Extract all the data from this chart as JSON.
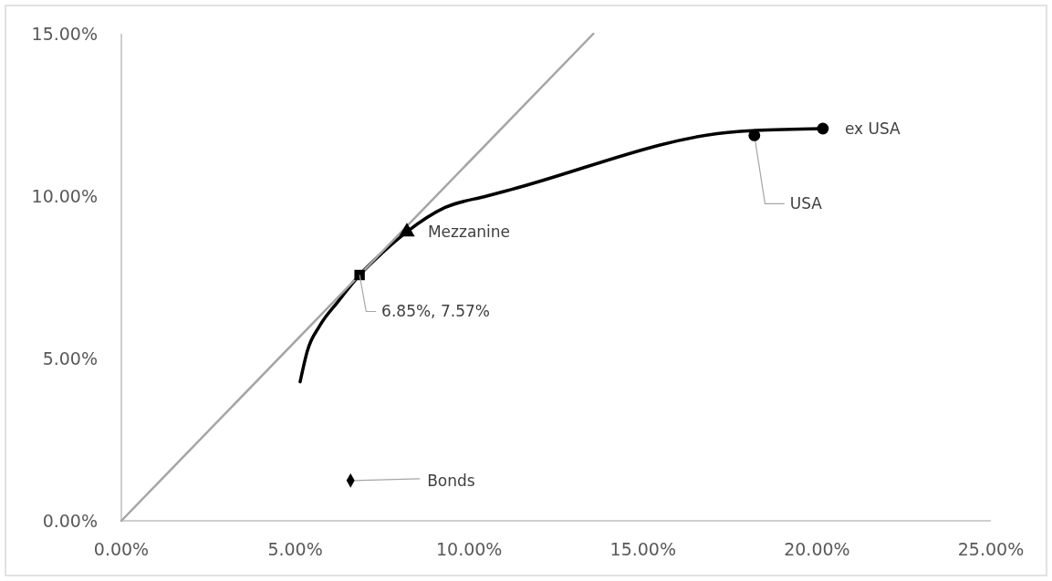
{
  "chart_data": {
    "type": "scatter",
    "xlim": [
      0,
      25
    ],
    "ylim": [
      0,
      15
    ],
    "xticks": [
      {
        "value": 0,
        "label": "0.00%"
      },
      {
        "value": 5,
        "label": "5.00%"
      },
      {
        "value": 10,
        "label": "10.00%"
      },
      {
        "value": 15,
        "label": "15.00%"
      },
      {
        "value": 20,
        "label": "20.00%"
      },
      {
        "value": 25,
        "label": "25.00%"
      }
    ],
    "yticks": [
      {
        "value": 0,
        "label": "0.00%"
      },
      {
        "value": 5,
        "label": "5.00%"
      },
      {
        "value": 10,
        "label": "10.00%"
      },
      {
        "value": 15,
        "label": "15.00%"
      }
    ],
    "grid": false,
    "series": [
      {
        "type": "line",
        "color": "#000000",
        "marker": "none",
        "x": [
          5.14,
          5.35,
          5.7,
          6.22,
          6.85,
          7.5,
          8.21,
          9.31,
          10.5,
          11.2,
          17.72,
          18.22,
          20.17
        ],
        "values": [
          4.28,
          5.24,
          6.0,
          6.74,
          7.57,
          8.25,
          8.9,
          9.65,
          10.0,
          10.2,
          11.99,
          12.02,
          12.08
        ]
      },
      {
        "type": "line",
        "color": "#a5a5a5",
        "marker": "none",
        "x": [
          0,
          13.57
        ],
        "values": [
          0,
          15
        ]
      },
      {
        "name": "Bonds",
        "color": "#000000",
        "marker": "diamond",
        "x": [
          6.59
        ],
        "values": [
          1.24
        ]
      },
      {
        "color": "#000000",
        "marker": "square",
        "x": [
          6.85
        ],
        "values": [
          7.57
        ]
      },
      {
        "name": "Mezzanine",
        "color": "#000000",
        "marker": "triangle",
        "x": [
          8.21
        ],
        "values": [
          8.9
        ]
      },
      {
        "name": "USA",
        "color": "#000000",
        "marker": "circle",
        "x": [
          18.2
        ],
        "values": [
          11.87
        ]
      },
      {
        "name": "ex USA",
        "color": "#000000",
        "marker": "circle",
        "x": [
          20.17
        ],
        "values": [
          12.08
        ]
      }
    ],
    "annotations": [
      {
        "text": "6.85%, 7.57%",
        "x": 6.85,
        "y": 7.57
      }
    ]
  }
}
